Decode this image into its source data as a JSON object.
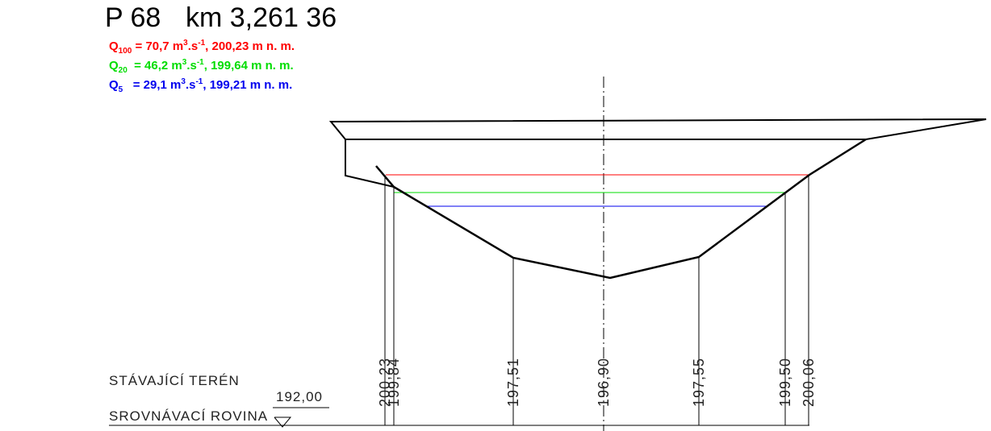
{
  "header": {
    "profile": "P 68",
    "station": "km 3,261 36"
  },
  "flows": [
    {
      "symbol": "Q",
      "sub": "100",
      "a": " = 70,7 m",
      "sup1": "3",
      "b": ".s",
      "sup2": "-1",
      "c": ", 200,23 m n. m.",
      "color": "#ff0000"
    },
    {
      "symbol": "Q",
      "sub": "20",
      "a": "  = 46,2 m",
      "sup1": "3",
      "b": ".s",
      "sup2": "-1",
      "c": ", 199,64 m n. m.",
      "color": "#00dd00"
    },
    {
      "symbol": "Q",
      "sub": "5",
      "a": "   = 29,1 m",
      "sup1": "3",
      "b": ".s",
      "sup2": "-1",
      "c": ", 199,21 m n. m.",
      "color": "#0000ee"
    }
  ],
  "rows": {
    "terrain": "STÁVAJÍCÍ TERÉN",
    "datum_label": "SROVNÁVACÍ ROVINA",
    "datum": "192,00"
  },
  "elevations": [
    "200,23",
    "199,84",
    "197,51",
    "196,90",
    "197,55",
    "199,50",
    "200,06"
  ]
}
